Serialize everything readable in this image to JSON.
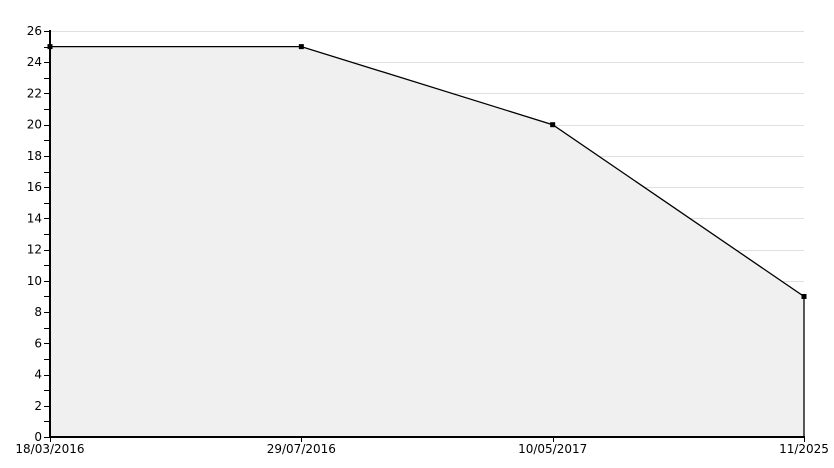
{
  "chart_data": {
    "type": "area",
    "title": "",
    "xlabel": "",
    "ylabel": "",
    "categories": [
      "18/03/2016",
      "29/07/2016",
      "10/05/2017",
      "11/2025"
    ],
    "values": [
      25,
      25,
      20,
      9
    ],
    "ylim": [
      0,
      26
    ],
    "y_major_tick_step": 2,
    "y_minor_tick_step": 1,
    "grid": "horizontal-major-only",
    "grid_hidden_under_fill": true,
    "legend": "none",
    "marker": "square",
    "colors": {
      "background": "#ffffff",
      "line": "#000000",
      "fill": "#f0f0f0",
      "grid": "#e0e0e0",
      "axis": "#000000",
      "tick": "#000000",
      "text": "#000000"
    }
  }
}
